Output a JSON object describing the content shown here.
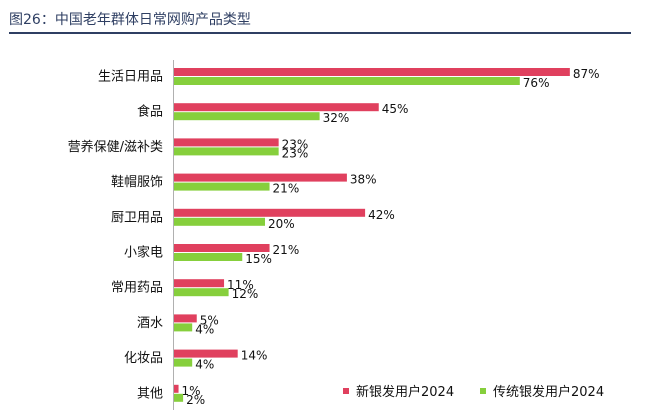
{
  "title": "图26：中国老年群体日常网购产品类型",
  "chart_data": {
    "type": "bar",
    "orientation": "horizontal",
    "categories": [
      "生活日用品",
      "食品",
      "营养保健/滋补类",
      "鞋帽服饰",
      "厨卫用品",
      "小家电",
      "常用药品",
      "酒水",
      "化妆品",
      "其他"
    ],
    "series": [
      {
        "name": "新银发用户2024",
        "color": "#e0405e",
        "values": [
          87,
          45,
          23,
          38,
          42,
          21,
          11,
          5,
          14,
          1
        ],
        "labels": [
          "87%",
          "45%",
          "23%",
          "38%",
          "42%",
          "21%",
          "11%",
          "5%",
          "14%",
          "1%"
        ]
      },
      {
        "name": "传统银发用户2024",
        "color": "#86cf3c",
        "values": [
          76,
          32,
          23,
          21,
          20,
          15,
          12,
          4,
          4,
          2
        ],
        "labels": [
          "76%",
          "32%",
          "23%",
          "21%",
          "20%",
          "15%",
          "12%",
          "4%",
          "4%",
          "2%"
        ]
      }
    ],
    "xlim": [
      0,
      100
    ],
    "legend_position": "bottom-right",
    "grid": false
  }
}
